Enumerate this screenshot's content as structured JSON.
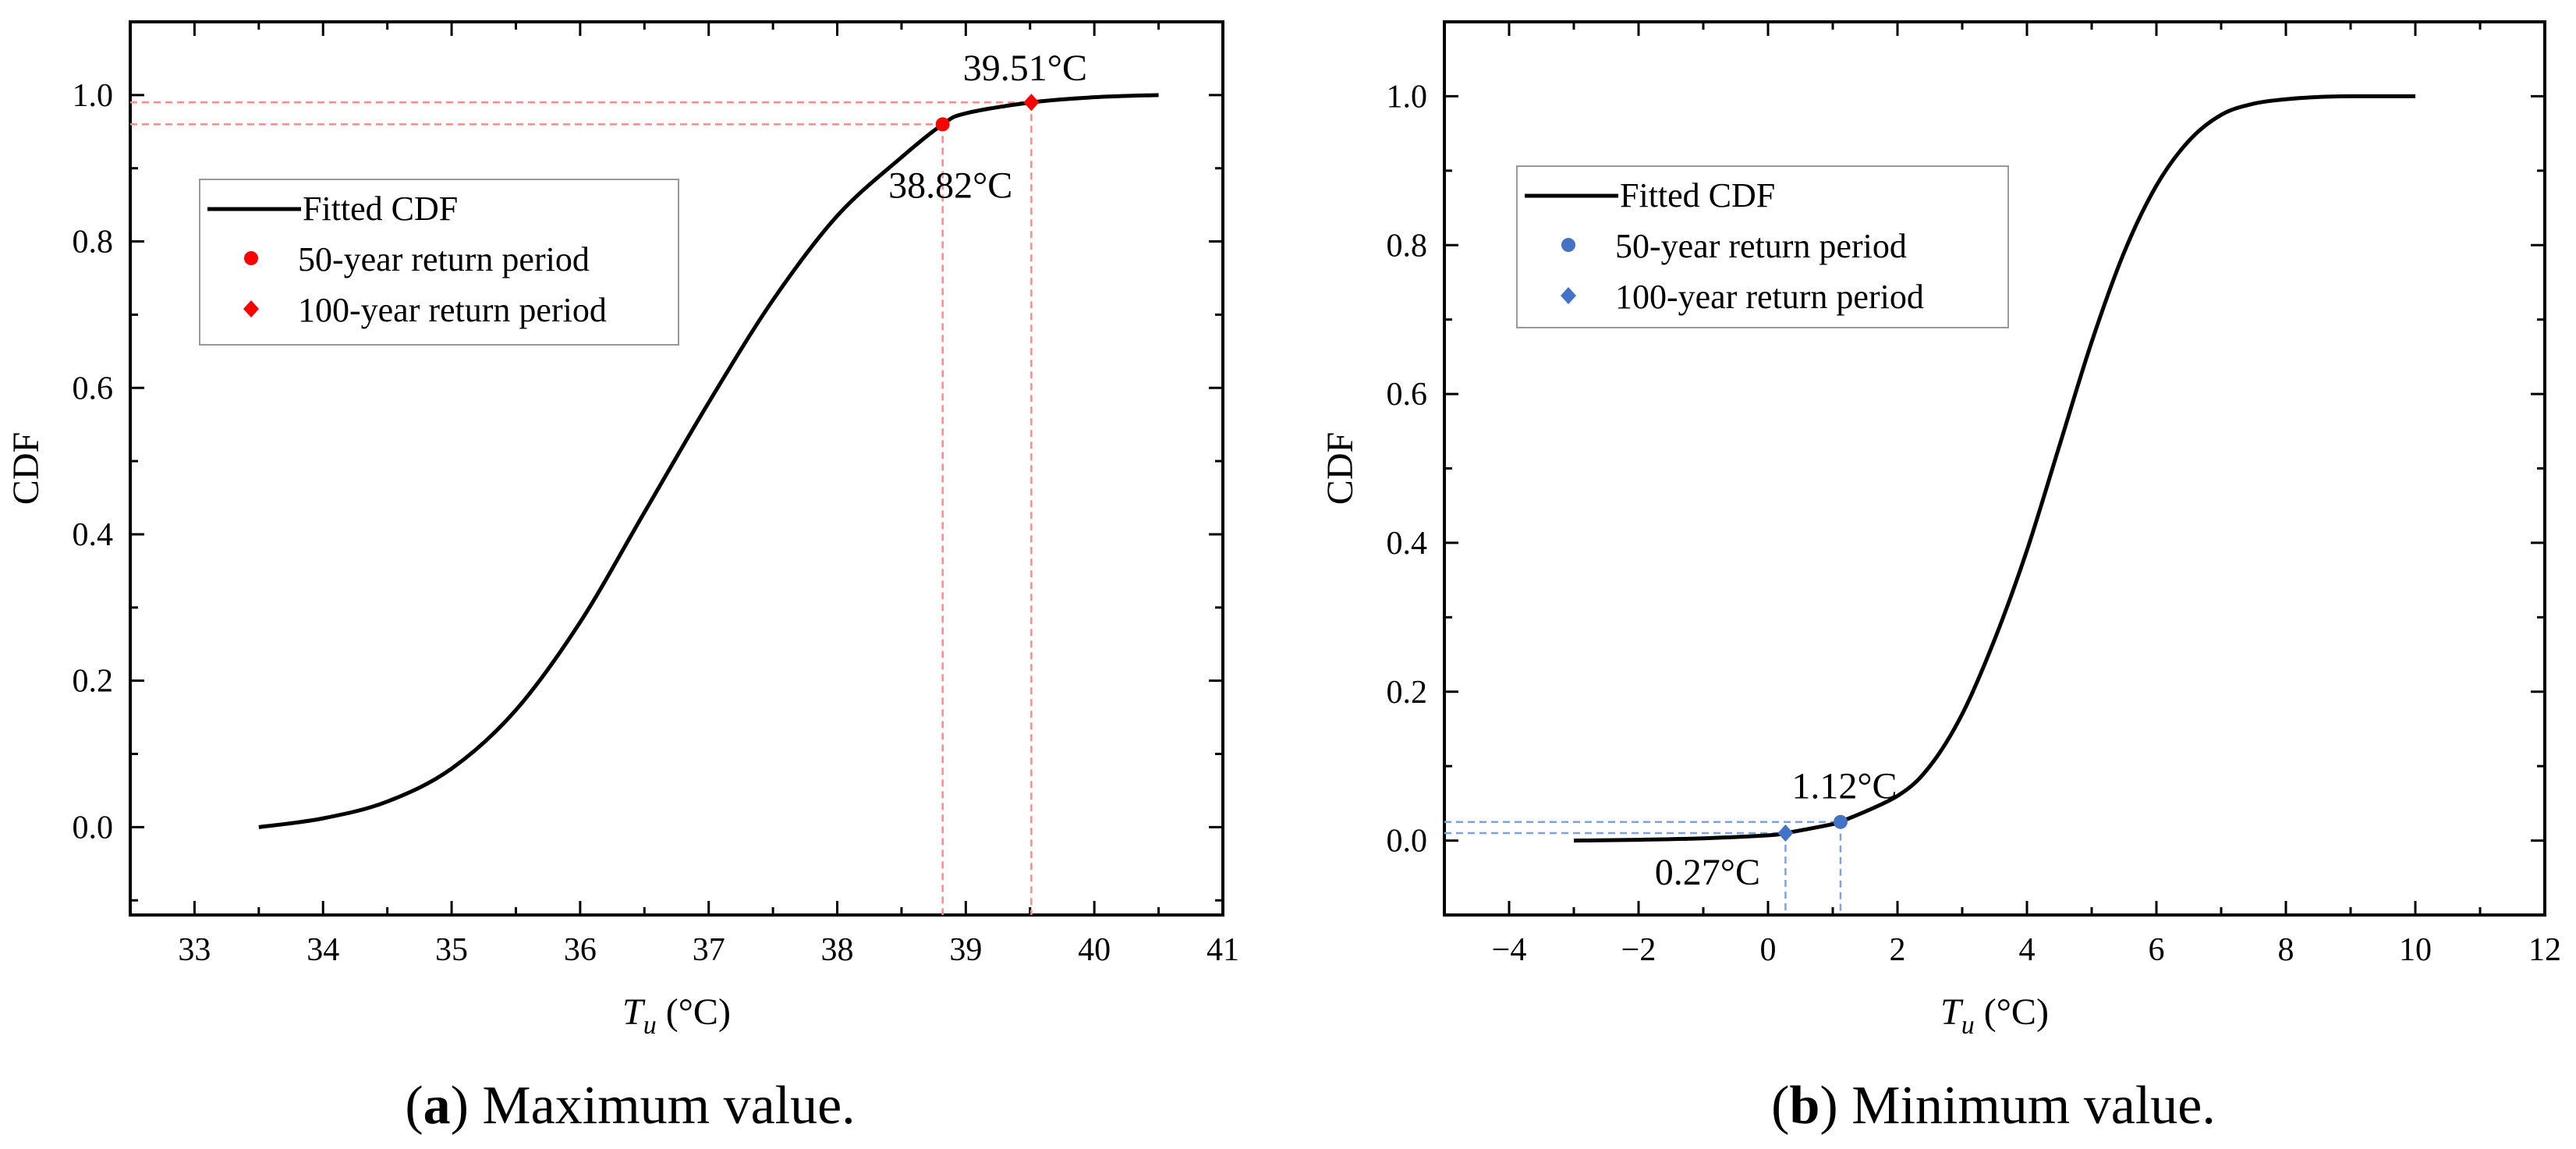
{
  "chart_data": [
    {
      "type": "line",
      "panel": "a",
      "caption_letter": "a",
      "caption_text": " Maximum value.",
      "xlabel_var": "T",
      "xlabel_sub": "u",
      "xlabel_unit": " (°C)",
      "ylabel": "CDF",
      "xlim": [
        32.5,
        41
      ],
      "ylim": [
        -0.12,
        1.1
      ],
      "xticks": [
        33,
        34,
        35,
        36,
        37,
        38,
        39,
        40,
        41
      ],
      "yticks": [
        0.0,
        0.2,
        0.4,
        0.6,
        0.8,
        1.0
      ],
      "ytick_labels": [
        "0.0",
        "0.2",
        "0.4",
        "0.6",
        "0.8",
        "1.0"
      ],
      "series": [
        {
          "name": "Fitted CDF",
          "x": [
            33.5,
            34.0,
            34.5,
            35.0,
            35.5,
            36.0,
            36.5,
            37.0,
            37.5,
            38.0,
            38.5,
            38.82,
            39.0,
            39.51,
            40.0,
            40.5
          ],
          "y": [
            0.0,
            0.012,
            0.035,
            0.08,
            0.16,
            0.28,
            0.43,
            0.58,
            0.72,
            0.835,
            0.915,
            0.96,
            0.975,
            0.99,
            0.997,
            1.0
          ]
        }
      ],
      "points": [
        {
          "name": "50-year return period",
          "marker": "circle",
          "x": 38.82,
          "y": 0.96,
          "label": "38.82°C"
        },
        {
          "name": "100-year return period",
          "marker": "diamond",
          "x": 39.51,
          "y": 0.99,
          "label": "39.51°C"
        }
      ],
      "legend": [
        "Fitted CDF",
        "50-year return period",
        "100-year return period"
      ],
      "legend_position": "upper-left",
      "accent_color": "#ff0000",
      "guide_color": "#ff8a8a"
    },
    {
      "type": "line",
      "panel": "b",
      "caption_letter": "b",
      "caption_text": " Minimum value.",
      "xlabel_var": "T",
      "xlabel_sub": "u",
      "xlabel_unit": " (°C)",
      "ylabel": "CDF",
      "xlim": [
        -5,
        12
      ],
      "ylim": [
        -0.1,
        1.1
      ],
      "xticks": [
        -4,
        -2,
        0,
        2,
        4,
        6,
        8,
        10,
        12
      ],
      "xtick_labels": [
        "−4",
        "−2",
        "0",
        "2",
        "4",
        "6",
        "8",
        "10",
        "12"
      ],
      "yticks": [
        0.0,
        0.2,
        0.4,
        0.6,
        0.8,
        1.0
      ],
      "ytick_labels": [
        "0.0",
        "0.2",
        "0.4",
        "0.6",
        "0.8",
        "1.0"
      ],
      "series": [
        {
          "name": "Fitted CDF",
          "x": [
            -3,
            -2,
            -1,
            0,
            0.27,
            1,
            1.12,
            2,
            2.5,
            3,
            3.5,
            4,
            4.5,
            5,
            5.5,
            6,
            6.5,
            7,
            7.5,
            8,
            8.5,
            9,
            10
          ],
          "y": [
            0.0,
            0.001,
            0.003,
            0.007,
            0.01,
            0.022,
            0.025,
            0.06,
            0.1,
            0.17,
            0.27,
            0.39,
            0.53,
            0.67,
            0.79,
            0.88,
            0.94,
            0.975,
            0.99,
            0.996,
            0.999,
            1.0,
            1.0
          ]
        }
      ],
      "points": [
        {
          "name": "50-year return period",
          "marker": "circle",
          "x": 1.12,
          "y": 0.025,
          "label": "1.12°C"
        },
        {
          "name": "100-year return period",
          "marker": "diamond",
          "x": 0.27,
          "y": 0.01,
          "label": "0.27°C"
        }
      ],
      "legend": [
        "Fitted CDF",
        "50-year return period",
        "100-year return period"
      ],
      "legend_position": "upper-left",
      "accent_color": "#4472c4",
      "guide_color": "#7fa3e0"
    }
  ]
}
